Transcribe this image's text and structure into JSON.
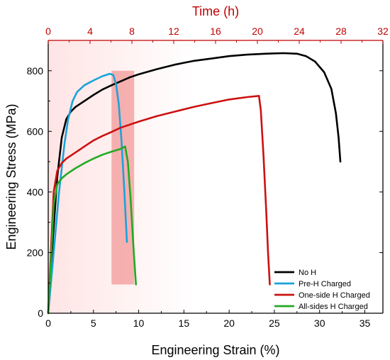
{
  "chart_data": {
    "type": "line",
    "xlabel": "Engineering Strain (%)",
    "ylabel": "Engineering Stress (MPa)",
    "top_xlabel": "Time (h)",
    "xlim": [
      0,
      37
    ],
    "ylim": [
      0,
      900
    ],
    "top_xlim": [
      0,
      32
    ],
    "x_ticks": [
      0,
      5,
      10,
      15,
      20,
      25,
      30,
      35
    ],
    "y_ticks": [
      0,
      200,
      400,
      600,
      800
    ],
    "top_ticks": [
      0,
      4,
      8,
      12,
      16,
      20,
      24,
      28,
      32
    ],
    "grid": false,
    "legend_position": "bottom-right",
    "colors": {
      "top_axis": "#c00000",
      "shaded_region": "#ffd4d4",
      "highlight_box": "#f5a3a3"
    },
    "background_gradient": {
      "strain_range": [
        0,
        16
      ],
      "color": "#ffe8e8"
    },
    "highlight_box": {
      "strain_range": [
        7,
        9.5
      ],
      "stress_range": [
        95,
        800
      ]
    },
    "series": [
      {
        "name": "No H",
        "color": "#000000",
        "x": [
          0,
          0.5,
          1.0,
          1.5,
          2.0,
          2.5,
          3.0,
          4.0,
          5.0,
          6.0,
          7.0,
          8.0,
          9.0,
          10.0,
          12.0,
          14.0,
          16.0,
          18.0,
          20.0,
          22.0,
          24.0,
          26.0,
          27.5,
          28.5,
          29.5,
          30.5,
          31.3,
          31.8,
          32.1,
          32.3
        ],
        "y": [
          0,
          240,
          450,
          580,
          640,
          665,
          680,
          700,
          720,
          738,
          752,
          765,
          778,
          788,
          805,
          820,
          832,
          840,
          848,
          853,
          856,
          858,
          856,
          848,
          830,
          795,
          740,
          660,
          580,
          500
        ]
      },
      {
        "name": "Pre-H Charged",
        "color": "#1aa3d9",
        "x": [
          0,
          0.6,
          1.2,
          1.8,
          2.2,
          2.7,
          3.2,
          4.0,
          5.0,
          6.0,
          6.8,
          7.2,
          7.5,
          7.8,
          8.1,
          8.4,
          8.7
        ],
        "y": [
          0,
          200,
          400,
          560,
          640,
          700,
          730,
          752,
          768,
          782,
          790,
          786,
          755,
          690,
          570,
          410,
          235
        ]
      },
      {
        "name": "One-side H Charged",
        "color": "#cc1111",
        "x": [
          0,
          0.3,
          0.6,
          1.0,
          1.5,
          2.0,
          3.0,
          4.0,
          5.0,
          6.0,
          7.0,
          8.0,
          10.0,
          12.0,
          14.0,
          16.0,
          18.0,
          20.0,
          22.0,
          23.3,
          23.5,
          23.8,
          24.1,
          24.3,
          24.5
        ],
        "y": [
          0,
          200,
          400,
          470,
          495,
          510,
          530,
          550,
          570,
          585,
          598,
          612,
          632,
          650,
          665,
          680,
          693,
          705,
          713,
          717,
          670,
          520,
          340,
          200,
          95
        ]
      },
      {
        "name": "All-sides H Charged",
        "color": "#22aa22",
        "x": [
          0,
          0.3,
          0.6,
          1.0,
          1.5,
          2.0,
          3.0,
          4.0,
          5.0,
          6.0,
          7.0,
          8.0,
          8.5,
          8.8,
          9.1,
          9.4,
          9.7
        ],
        "y": [
          0,
          170,
          360,
          425,
          445,
          458,
          478,
          495,
          510,
          523,
          533,
          542,
          550,
          500,
          380,
          230,
          95
        ]
      }
    ]
  }
}
